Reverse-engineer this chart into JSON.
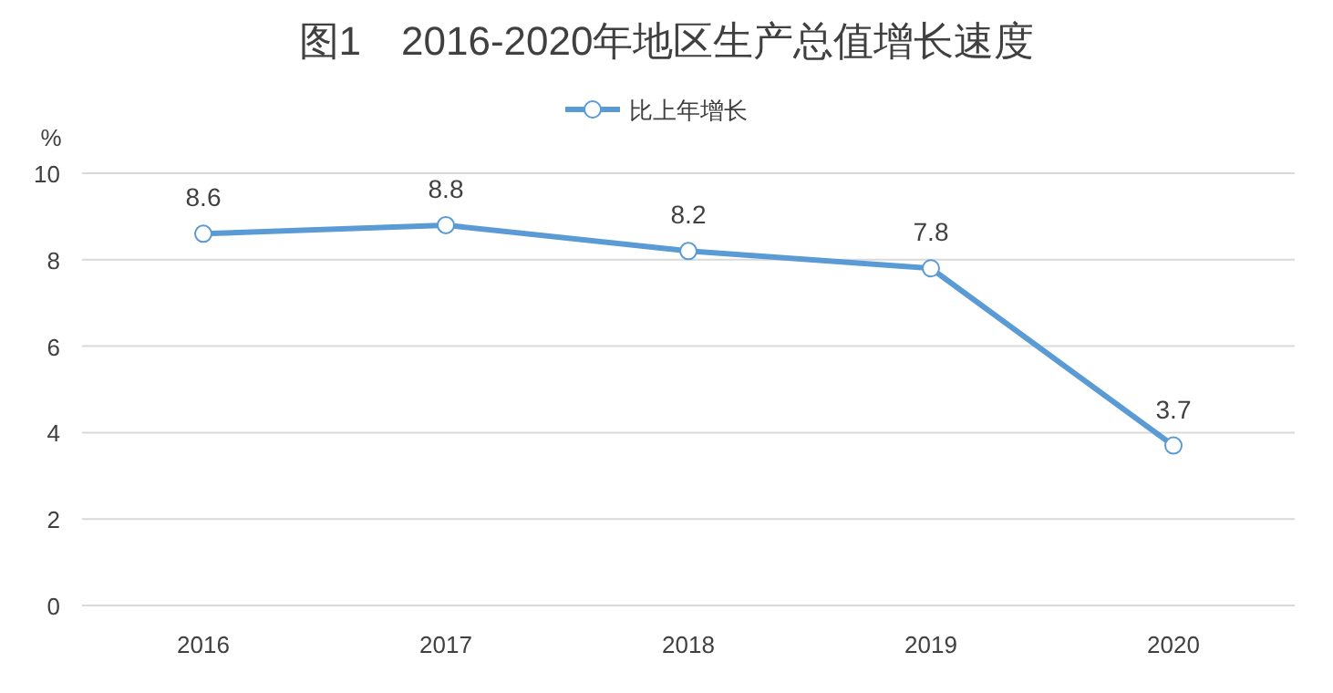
{
  "chart_data": {
    "type": "line",
    "title": "图1　2016-2020年地区生产总值增长速度",
    "ylabel": "%",
    "categories": [
      "2016",
      "2017",
      "2018",
      "2019",
      "2020"
    ],
    "series": [
      {
        "name": "比上年增长",
        "color": "#5b9bd5",
        "values": [
          8.6,
          8.8,
          8.2,
          7.8,
          3.7
        ]
      }
    ],
    "ylim": [
      0,
      10
    ],
    "yticks": [
      0,
      2,
      4,
      6,
      8,
      10
    ],
    "grid": "y",
    "legend": "top",
    "marker": "circle",
    "data_labels": true
  }
}
